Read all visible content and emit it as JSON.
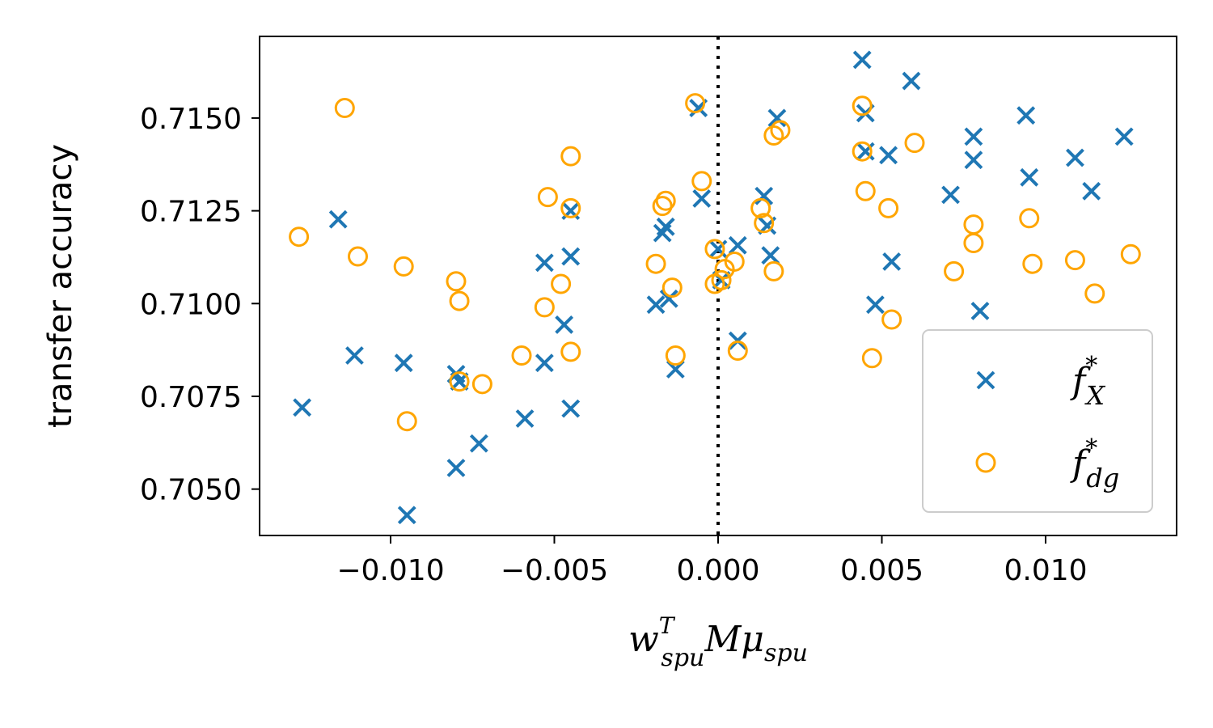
{
  "chart_data": {
    "type": "scatter",
    "xlabel": {
      "base": "w",
      "sup": "T",
      "sub": "spu",
      "middle": "Mμ",
      "sub2": "spu"
    },
    "ylabel": "transfer accuracy",
    "xlim": [
      -0.014,
      0.014
    ],
    "ylim": [
      0.70375,
      0.7172
    ],
    "xticks": [
      -0.01,
      -0.005,
      0.0,
      0.005,
      0.01
    ],
    "xtick_labels": [
      "−0.010",
      "−0.005",
      "0.000",
      "0.005",
      "0.010"
    ],
    "yticks": [
      0.705,
      0.7075,
      0.71,
      0.7125,
      0.715
    ],
    "ytick_labels": [
      "0.7050",
      "0.7075",
      "0.7100",
      "0.7125",
      "0.7150"
    ],
    "reference_line": {
      "x": 0.0,
      "style": "dotted",
      "color": "#000000"
    },
    "legend_position": "lower right",
    "series": [
      {
        "name": "f*_X",
        "legend": {
          "base": "f",
          "sup": "*",
          "sub": "X"
        },
        "marker": "x",
        "color": "#1f77b4",
        "points": [
          [
            -0.0127,
            0.7072
          ],
          [
            -0.0116,
            0.71227
          ],
          [
            -0.0111,
            0.7086
          ],
          [
            -0.0096,
            0.7084
          ],
          [
            -0.0095,
            0.7043
          ],
          [
            -0.008,
            0.7081
          ],
          [
            -0.0079,
            0.7079
          ],
          [
            -0.008,
            0.70557
          ],
          [
            -0.0073,
            0.70623
          ],
          [
            -0.0059,
            0.7069
          ],
          [
            -0.0053,
            0.7084
          ],
          [
            -0.0053,
            0.7111
          ],
          [
            -0.0047,
            0.70943
          ],
          [
            -0.0045,
            0.7125
          ],
          [
            -0.0045,
            0.71127
          ],
          [
            -0.0045,
            0.70717
          ],
          [
            -0.0019,
            0.70997
          ],
          [
            -0.0016,
            0.71207
          ],
          [
            -0.0017,
            0.7119
          ],
          [
            -0.0015,
            0.71013
          ],
          [
            -0.0013,
            0.70823
          ],
          [
            -0.0006,
            0.71527
          ],
          [
            -0.0005,
            0.71283
          ],
          [
            0.0,
            0.71147
          ],
          [
            0.0001,
            0.71063
          ],
          [
            0.0006,
            0.71157
          ],
          [
            0.0006,
            0.709
          ],
          [
            0.0014,
            0.7129
          ],
          [
            0.0015,
            0.7121
          ],
          [
            0.0016,
            0.7113
          ],
          [
            0.0018,
            0.715
          ],
          [
            0.0044,
            0.71657
          ],
          [
            0.0045,
            0.71513
          ],
          [
            0.0045,
            0.7141
          ],
          [
            0.0052,
            0.714
          ],
          [
            0.0048,
            0.70997
          ],
          [
            0.0053,
            0.71113
          ],
          [
            0.0059,
            0.716
          ],
          [
            0.0071,
            0.71293
          ],
          [
            0.0078,
            0.7145
          ],
          [
            0.0078,
            0.71387
          ],
          [
            0.008,
            0.7098
          ],
          [
            0.0094,
            0.71507
          ],
          [
            0.0095,
            0.7134
          ],
          [
            0.0109,
            0.71393
          ],
          [
            0.0114,
            0.71303
          ],
          [
            0.0124,
            0.7145
          ]
        ]
      },
      {
        "name": "f*_dg",
        "legend": {
          "base": "f",
          "sup": "*",
          "sub": "dg"
        },
        "marker": "o",
        "color": "#ffa500",
        "points": [
          [
            -0.0128,
            0.7118
          ],
          [
            -0.0114,
            0.71527
          ],
          [
            -0.011,
            0.71127
          ],
          [
            -0.0096,
            0.711
          ],
          [
            -0.0095,
            0.70683
          ],
          [
            -0.008,
            0.7106
          ],
          [
            -0.0079,
            0.71007
          ],
          [
            -0.0079,
            0.7079
          ],
          [
            -0.0072,
            0.70783
          ],
          [
            -0.006,
            0.7086
          ],
          [
            -0.0052,
            0.71287
          ],
          [
            -0.0053,
            0.7099
          ],
          [
            -0.0048,
            0.71053
          ],
          [
            -0.0045,
            0.71397
          ],
          [
            -0.0045,
            0.71257
          ],
          [
            -0.0045,
            0.7087
          ],
          [
            -0.0019,
            0.71107
          ],
          [
            -0.0017,
            0.71263
          ],
          [
            -0.0016,
            0.71277
          ],
          [
            -0.0014,
            0.71043
          ],
          [
            -0.0013,
            0.7086
          ],
          [
            -0.0007,
            0.7154
          ],
          [
            -0.0005,
            0.7133
          ],
          [
            -0.0001,
            0.71147
          ],
          [
            -0.0001,
            0.71053
          ],
          [
            0.0002,
            0.71093
          ],
          [
            0.0001,
            0.71063
          ],
          [
            0.0005,
            0.71113
          ],
          [
            0.0006,
            0.70873
          ],
          [
            0.0013,
            0.71257
          ],
          [
            0.0014,
            0.71217
          ],
          [
            0.0017,
            0.71087
          ],
          [
            0.0017,
            0.71453
          ],
          [
            0.0019,
            0.71467
          ],
          [
            0.0044,
            0.71533
          ],
          [
            0.0044,
            0.7141
          ],
          [
            0.0045,
            0.71303
          ],
          [
            0.0052,
            0.71257
          ],
          [
            0.0053,
            0.70957
          ],
          [
            0.0047,
            0.70853
          ],
          [
            0.006,
            0.71433
          ],
          [
            0.0072,
            0.71087
          ],
          [
            0.0078,
            0.71213
          ],
          [
            0.0078,
            0.71163
          ],
          [
            0.0095,
            0.7123
          ],
          [
            0.0096,
            0.71107
          ],
          [
            0.0109,
            0.71117
          ],
          [
            0.0115,
            0.71027
          ],
          [
            0.0126,
            0.71133
          ]
        ]
      }
    ]
  }
}
